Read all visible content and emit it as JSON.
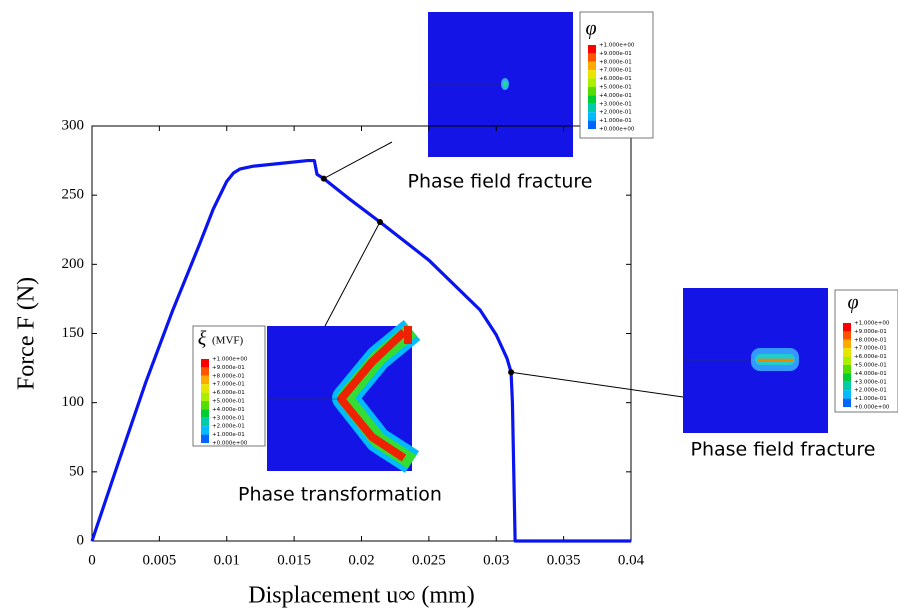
{
  "chart_data": {
    "type": "line",
    "xlabel": "Displacement u∞ (mm)",
    "ylabel": "Force F (N)",
    "xlim": [
      0,
      0.04
    ],
    "ylim": [
      0,
      300
    ],
    "xticks": [
      0,
      0.005,
      0.01,
      0.015,
      0.02,
      0.025,
      0.03,
      0.035,
      0.04
    ],
    "yticks": [
      0,
      50,
      100,
      150,
      200,
      250,
      300
    ],
    "series": [
      {
        "color": "#0a14f0",
        "x": [
          0,
          0.002,
          0.004,
          0.006,
          0.008,
          0.009,
          0.01,
          0.0105,
          0.011,
          0.012,
          0.014,
          0.016,
          0.0165,
          0.0167,
          0.0172,
          0.019,
          0.02137,
          0.025,
          0.0288,
          0.03,
          0.0308,
          0.0311,
          0.0312,
          0.0313,
          0.0314,
          0.035,
          0.04
        ],
        "values": [
          0,
          58,
          115,
          167,
          215,
          240,
          260,
          266,
          269,
          271,
          273,
          275,
          275,
          265,
          262,
          248,
          230.6,
          203,
          167,
          149,
          132,
          122,
          100,
          50,
          0,
          0,
          0
        ]
      }
    ],
    "colorbar": {
      "labels": [
        "+1.000e+00",
        "+9.000e-01",
        "+8.000e-01",
        "+7.000e-01",
        "+6.000e-01",
        "+5.000e-01",
        "+4.000e-01",
        "+3.000e-01",
        "+2.000e-01",
        "+1.000e-01",
        "+0.000e+00"
      ],
      "colors": [
        "#ff0000",
        "#ff5500",
        "#ffaa00",
        "#e6e600",
        "#aaee00",
        "#55dd00",
        "#00cc33",
        "#00ccaa",
        "#00bbff",
        "#0066ff"
      ]
    },
    "insets": [
      {
        "label": "Phase field fracture",
        "legend_title": "φ",
        "point": [
          0.0172,
          262
        ]
      },
      {
        "label": "Phase transformation",
        "legend_title": "ξ",
        "legend_unit": "(MVF)",
        "point": [
          0.02137,
          230.6
        ]
      },
      {
        "label": "Phase field fracture",
        "legend_title": "φ",
        "point": [
          0.0311,
          122
        ]
      }
    ]
  }
}
